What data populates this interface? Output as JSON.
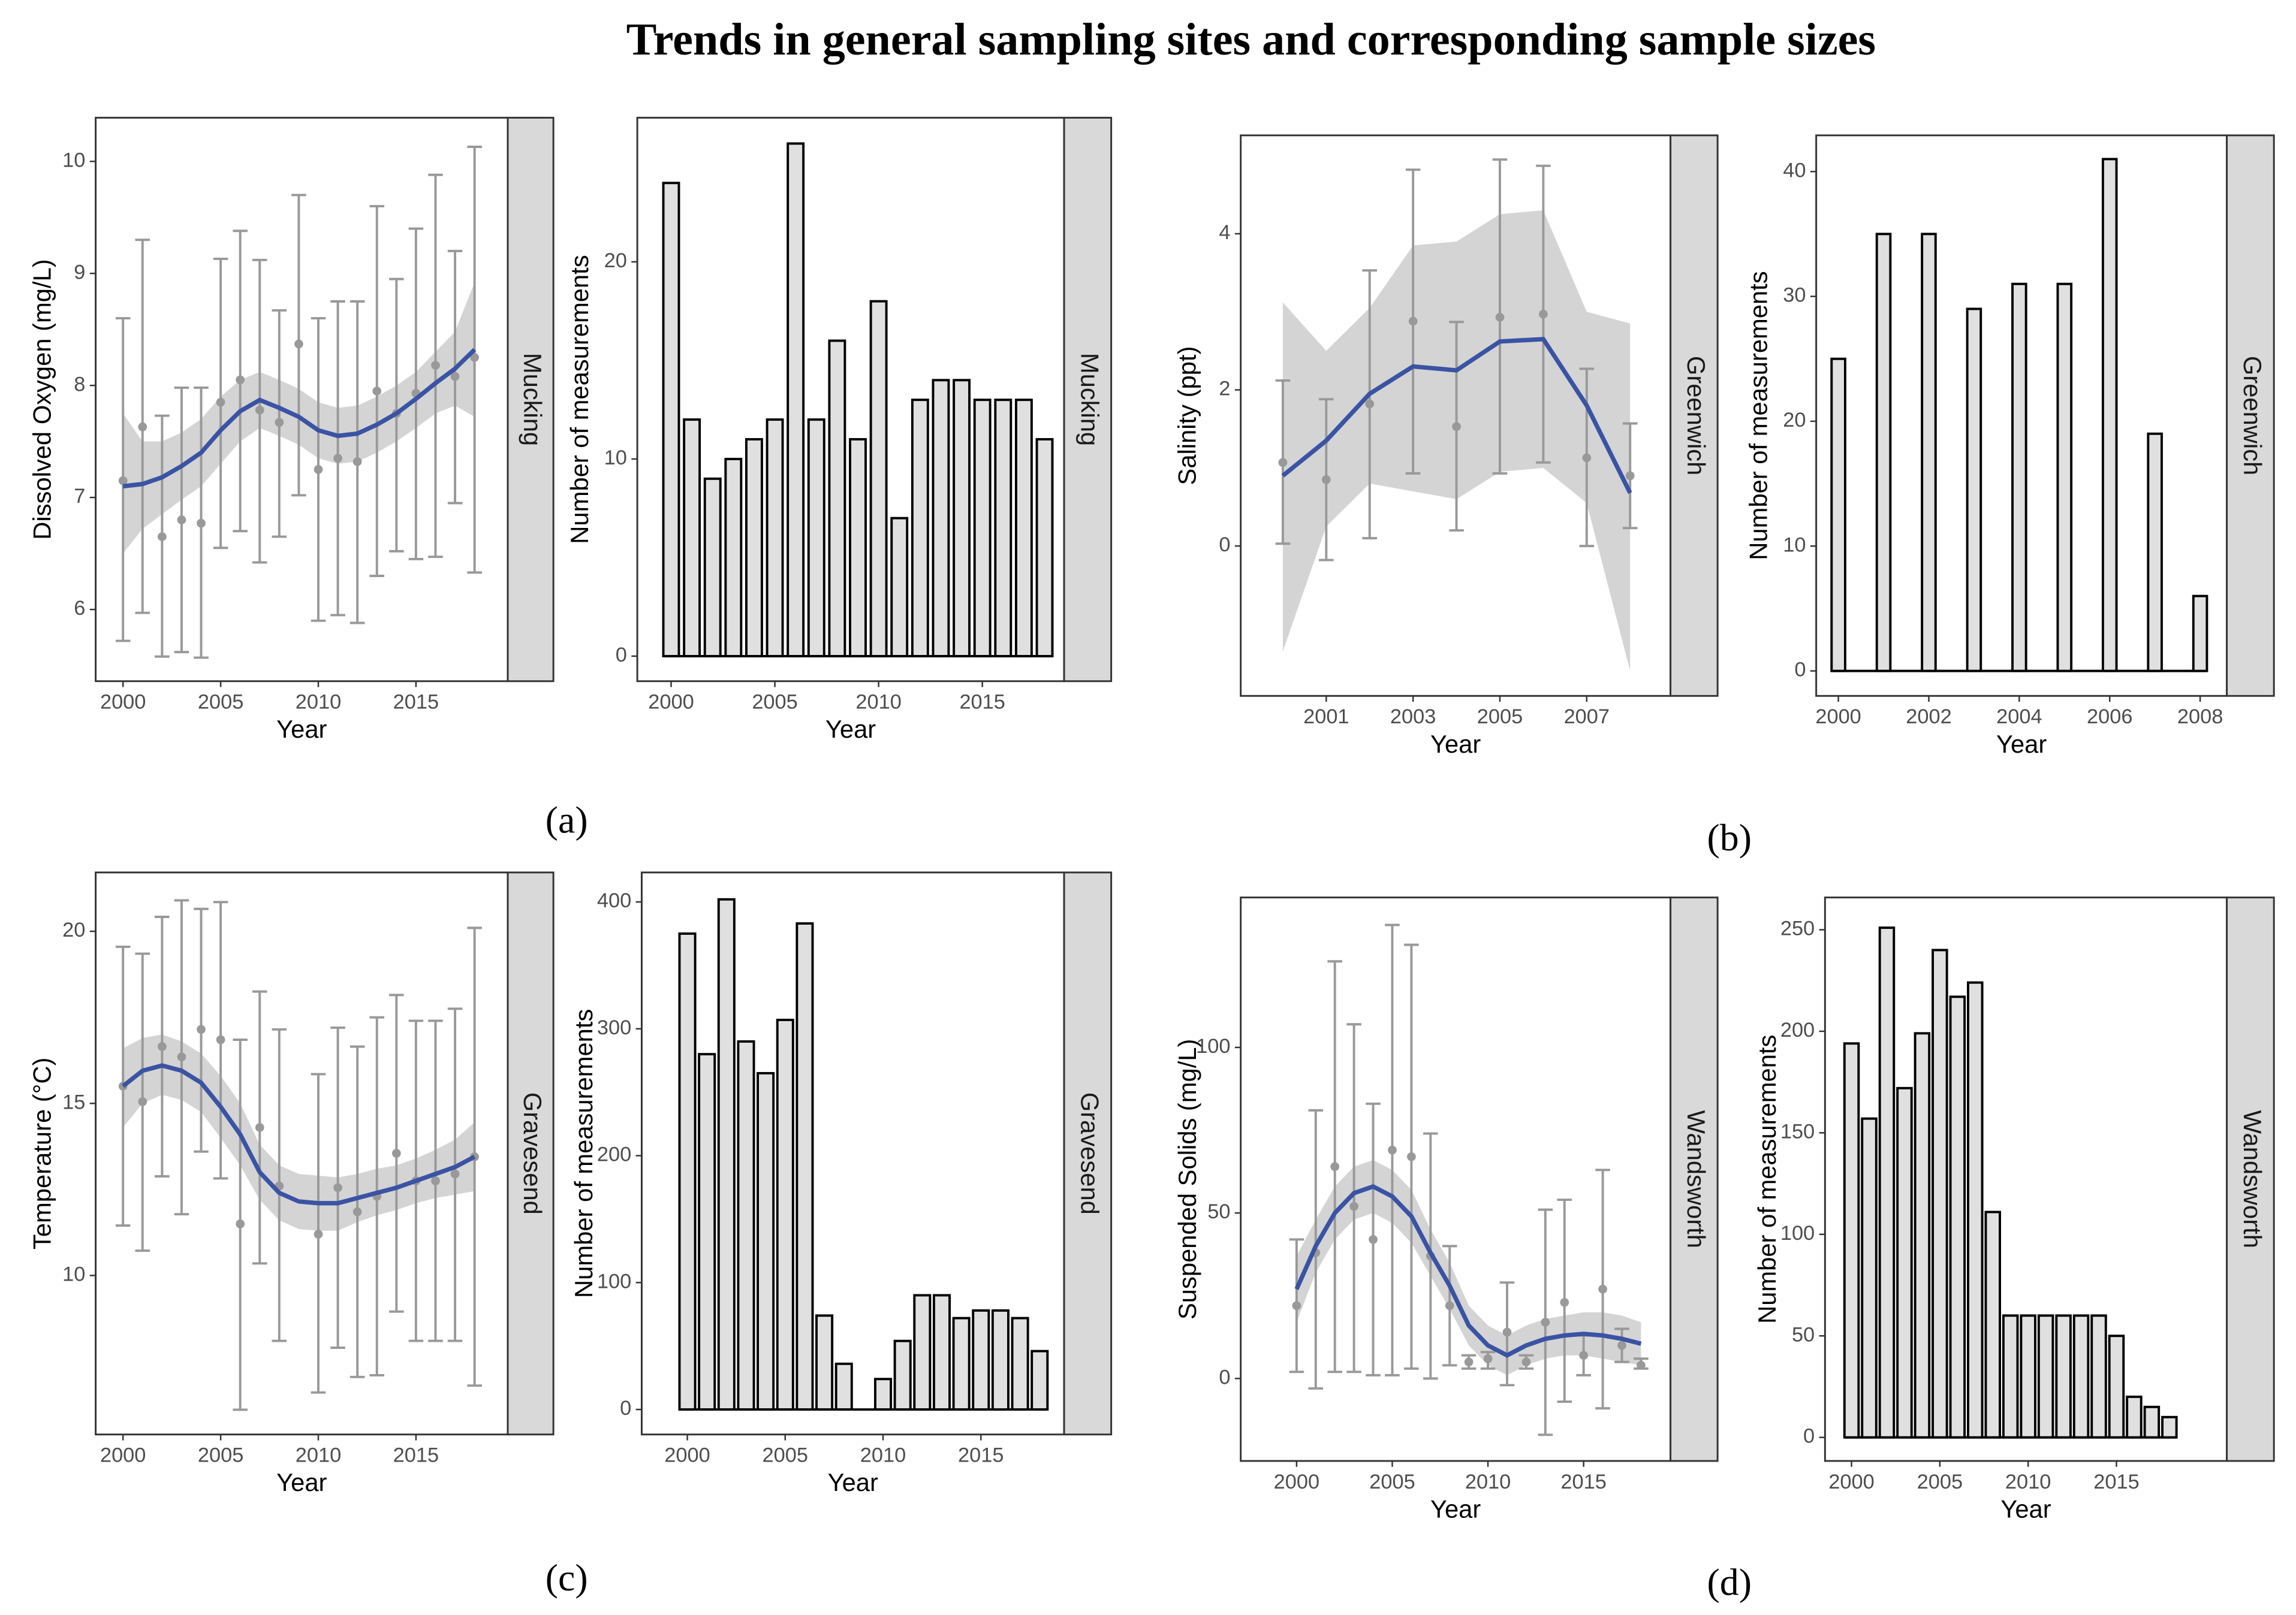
{
  "title": "Trends in general sampling sites and corresponding sample sizes",
  "panel_labels": [
    "(a)",
    "(b)",
    "(c)",
    "(d)"
  ],
  "chart_data": [
    {
      "type": "line",
      "ylabel": "Dissolved Oxygen (mg/L)",
      "xlabel": "Year",
      "facet": "Mucking",
      "x": [
        2000,
        2001,
        2002,
        2003,
        2004,
        2005,
        2006,
        2007,
        2008,
        2009,
        2010,
        2011,
        2012,
        2013,
        2014,
        2015,
        2016,
        2017,
        2018
      ],
      "values": [
        7.15,
        7.63,
        6.65,
        6.8,
        6.77,
        7.85,
        8.05,
        7.78,
        7.67,
        8.37,
        7.25,
        7.35,
        7.32,
        7.95,
        7.75,
        7.93,
        8.18,
        8.08,
        8.25
      ],
      "lower": [
        5.72,
        5.97,
        5.58,
        5.62,
        5.57,
        6.55,
        6.7,
        6.42,
        6.65,
        7.02,
        5.9,
        5.95,
        5.88,
        6.3,
        6.52,
        6.45,
        6.47,
        6.95,
        6.33
      ],
      "upper": [
        8.6,
        9.3,
        7.73,
        7.98,
        7.98,
        9.13,
        9.38,
        9.12,
        8.67,
        9.7,
        8.6,
        8.75,
        8.75,
        9.6,
        8.95,
        9.4,
        9.88,
        9.2,
        10.13
      ],
      "fit": [
        7.1,
        7.12,
        7.18,
        7.28,
        7.4,
        7.6,
        7.77,
        7.87,
        7.8,
        7.72,
        7.6,
        7.55,
        7.57,
        7.65,
        7.75,
        7.88,
        8.02,
        8.15,
        8.32
      ],
      "fit_lower": [
        6.5,
        6.72,
        6.85,
        6.98,
        7.1,
        7.3,
        7.5,
        7.62,
        7.55,
        7.47,
        7.35,
        7.3,
        7.32,
        7.4,
        7.5,
        7.62,
        7.75,
        7.82,
        7.72
      ],
      "fit_upper": [
        7.75,
        7.5,
        7.5,
        7.58,
        7.7,
        7.9,
        8.05,
        8.12,
        8.05,
        7.97,
        7.85,
        7.8,
        7.82,
        7.9,
        8.0,
        8.12,
        8.3,
        8.48,
        8.92
      ],
      "xlim": [
        1998.6,
        2019.7
      ],
      "xticks": [
        2000,
        2005,
        2010,
        2015
      ],
      "ylim": [
        5.36,
        10.39
      ],
      "yticks": [
        6,
        7,
        8,
        9,
        10
      ],
      "color": "#999999",
      "fit_color": "#3a53a4",
      "band_color": "#cccccc"
    },
    {
      "type": "bar",
      "ylabel": "Number of measurements",
      "xlabel": "Year",
      "facet": "Mucking",
      "x": [
        2000,
        2001,
        2002,
        2003,
        2004,
        2005,
        2006,
        2007,
        2008,
        2009,
        2010,
        2011,
        2012,
        2013,
        2014,
        2015,
        2016,
        2017,
        2018
      ],
      "values": [
        24,
        12,
        9,
        10,
        11,
        12,
        26,
        12,
        16,
        11,
        18,
        7,
        13,
        14,
        14,
        13,
        13,
        13,
        11
      ],
      "xlim": [
        1998.37,
        2018.94
      ],
      "xticks": [
        2000,
        2005,
        2010,
        2015
      ],
      "ylim": [
        -1.27,
        27.31
      ],
      "yticks": [
        0,
        10,
        20
      ],
      "color": "#e0e0e0"
    },
    {
      "type": "line",
      "ylabel": "Salinity (ppt)",
      "xlabel": "Year",
      "facet": "Greenwich",
      "x": [
        2000,
        2001,
        2002,
        2003,
        2004,
        2005,
        2006,
        2007,
        2008
      ],
      "values": [
        1.07,
        0.85,
        1.82,
        2.88,
        1.53,
        2.93,
        2.97,
        1.13,
        0.9
      ],
      "lower": [
        0.03,
        -0.18,
        0.1,
        0.93,
        0.2,
        0.93,
        1.07,
        0.0,
        0.23
      ],
      "upper": [
        2.12,
        1.88,
        3.53,
        4.82,
        2.87,
        4.95,
        4.87,
        2.27,
        1.57
      ],
      "fit": [
        0.9,
        1.35,
        1.95,
        2.3,
        2.25,
        2.62,
        2.65,
        1.8,
        0.68
      ],
      "fit_lower": [
        -1.35,
        0.25,
        0.8,
        0.7,
        0.6,
        0.95,
        1.0,
        0.55,
        -1.6
      ],
      "fit_upper": [
        3.12,
        2.5,
        3.05,
        3.85,
        3.9,
        4.25,
        4.3,
        3.0,
        2.85
      ],
      "xlim": [
        1999.03,
        2008.93
      ],
      "xticks": [
        2001,
        2003,
        2005,
        2007
      ],
      "ylim": [
        -1.92,
        5.26
      ],
      "yticks": [
        0,
        2,
        4
      ],
      "color": "#999999",
      "fit_color": "#3a53a4",
      "band_color": "#cccccc"
    },
    {
      "type": "bar",
      "ylabel": "Number of measurements",
      "xlabel": "Year",
      "facet": "Greenwich",
      "x": [
        2000,
        2001,
        2002,
        2003,
        2004,
        2005,
        2006,
        2007,
        2008
      ],
      "values": [
        25,
        35,
        35,
        29,
        31,
        31,
        41,
        19,
        6
      ],
      "xlim": [
        1999.51,
        2008.59
      ],
      "xticks": [
        2000,
        2002,
        2004,
        2006,
        2008
      ],
      "ylim": [
        -2,
        42.9
      ],
      "yticks": [
        0,
        10,
        20,
        30,
        40
      ],
      "color": "#e0e0e0"
    },
    {
      "type": "line",
      "ylabel": "Temperature (°C)",
      "xlabel": "Year",
      "facet": "Gravesend",
      "x": [
        2000,
        2001,
        2002,
        2003,
        2004,
        2005,
        2006,
        2007,
        2008,
        2009,
        2010,
        2011,
        2012,
        2013,
        2014,
        2015,
        2016,
        2017,
        2018
      ],
      "values": [
        15.5,
        15.05,
        16.65,
        16.35,
        17.15,
        16.85,
        11.5,
        14.3,
        12.6,
        null,
        11.2,
        12.55,
        11.85,
        12.3,
        13.55,
        12.75,
        12.75,
        12.95,
        13.45
      ],
      "lower": [
        11.45,
        10.72,
        12.88,
        11.78,
        13.6,
        12.82,
        6.1,
        10.35,
        8.1,
        null,
        6.6,
        7.9,
        7.05,
        7.1,
        8.95,
        8.1,
        8.1,
        8.1,
        6.8
      ],
      "upper": [
        19.55,
        19.35,
        20.42,
        20.9,
        20.65,
        20.85,
        16.85,
        18.25,
        17.15,
        null,
        15.85,
        17.2,
        16.65,
        17.5,
        18.15,
        17.4,
        17.4,
        17.75,
        20.1
      ],
      "fit": [
        15.5,
        15.95,
        16.1,
        15.95,
        15.6,
        14.9,
        14.1,
        13.0,
        12.4,
        12.15,
        12.1,
        12.1,
        12.25,
        12.4,
        12.55,
        12.75,
        12.95,
        13.15,
        13.45
      ],
      "fit_lower": [
        14.3,
        15.0,
        15.25,
        15.1,
        14.75,
        14.0,
        13.2,
        12.2,
        11.6,
        11.35,
        11.3,
        11.3,
        11.55,
        11.75,
        11.9,
        12.1,
        12.25,
        12.35,
        12.45
      ],
      "fit_upper": [
        16.6,
        16.9,
        17.0,
        16.8,
        16.45,
        15.8,
        15.0,
        13.8,
        13.2,
        12.95,
        12.9,
        12.85,
        12.95,
        13.1,
        13.2,
        13.4,
        13.65,
        13.95,
        14.45
      ],
      "xlim": [
        1998.6,
        2019.7
      ],
      "xticks": [
        2000,
        2005,
        2010,
        2015
      ],
      "ylim": [
        5.38,
        21.71
      ],
      "yticks": [
        10,
        15,
        20
      ],
      "color": "#999999",
      "fit_color": "#3a53a4",
      "band_color": "#cccccc"
    },
    {
      "type": "bar",
      "ylabel": "Number of measurements",
      "xlabel": "Year",
      "facet": "Gravesend",
      "x": [
        2000,
        2001,
        2002,
        2003,
        2004,
        2005,
        2006,
        2007,
        2008,
        2009,
        2010,
        2011,
        2012,
        2013,
        2014,
        2015,
        2016,
        2017,
        2018
      ],
      "values": [
        375,
        280,
        402,
        290,
        265,
        307,
        383,
        74,
        36,
        0,
        24,
        54,
        90,
        90,
        72,
        78,
        78,
        72,
        46
      ],
      "xlim": [
        1997.67,
        2019.25
      ],
      "xticks": [
        2000,
        2005,
        2010,
        2015
      ],
      "ylim": [
        -19.7,
        423.2
      ],
      "yticks": [
        0,
        100,
        200,
        300,
        400
      ],
      "color": "#e0e0e0"
    },
    {
      "type": "line",
      "ylabel": "Suspended Solids (mg/L)",
      "xlabel": "Year",
      "facet": "Wandsworth",
      "x": [
        2000,
        2001,
        2002,
        2003,
        2004,
        2005,
        2006,
        2007,
        2008,
        2009,
        2010,
        2011,
        2012,
        2013,
        2014,
        2015,
        2016,
        2017,
        2018
      ],
      "values": [
        22,
        38,
        64,
        52,
        42,
        69,
        67,
        37,
        22,
        5,
        6,
        14,
        5,
        17,
        23,
        7,
        27,
        10,
        4
      ],
      "lower": [
        2,
        -3,
        2,
        2,
        1,
        1,
        3,
        0,
        4,
        3,
        3,
        -2,
        3,
        -17,
        -7,
        1,
        -9,
        5,
        3
      ],
      "upper": [
        42,
        81,
        126,
        107,
        83,
        137,
        131,
        74,
        40,
        7,
        8,
        29,
        7,
        51,
        54,
        13,
        63,
        15,
        6
      ],
      "fit": [
        27,
        40,
        50,
        56,
        58,
        55,
        49,
        38,
        28,
        16,
        10,
        7,
        10,
        12,
        13,
        13.5,
        13,
        12,
        10.5
      ],
      "fit_lower": [
        17,
        32,
        42,
        48,
        50,
        47,
        41,
        31,
        21,
        10,
        4,
        1,
        4,
        6,
        7,
        7,
        6,
        5,
        4
      ],
      "fit_upper": [
        37,
        48,
        58,
        64,
        66,
        63,
        57,
        45,
        35,
        22,
        16,
        13,
        16,
        18,
        19,
        20,
        20,
        19,
        17
      ],
      "xlim": [
        1997.08,
        2019.54
      ],
      "xticks": [
        2000,
        2005,
        2010,
        2015
      ],
      "ylim": [
        -24.9,
        145.3
      ],
      "yticks": [
        0,
        50,
        100
      ],
      "color": "#999999",
      "fit_color": "#3a53a4",
      "band_color": "#cccccc"
    },
    {
      "type": "bar",
      "ylabel": "Number of measurements",
      "xlabel": "Year",
      "facet": "Wandsworth",
      "x": [
        2000,
        2001,
        2002,
        2003,
        2004,
        2005,
        2006,
        2007,
        2008,
        2009,
        2010,
        2011,
        2012,
        2013,
        2014,
        2015,
        2016,
        2017,
        2018
      ],
      "values": [
        194,
        157,
        251,
        172,
        199,
        240,
        217,
        224,
        111,
        60,
        60,
        60,
        60,
        60,
        60,
        50,
        20,
        15,
        10
      ],
      "xlim": [
        1998.5,
        2021.25
      ],
      "xticks": [
        2000,
        2005,
        2010,
        2015
      ],
      "ylim": [
        -11.6,
        265.9
      ],
      "yticks": [
        0,
        50,
        100,
        150,
        200,
        250
      ],
      "color": "#e0e0e0"
    }
  ]
}
